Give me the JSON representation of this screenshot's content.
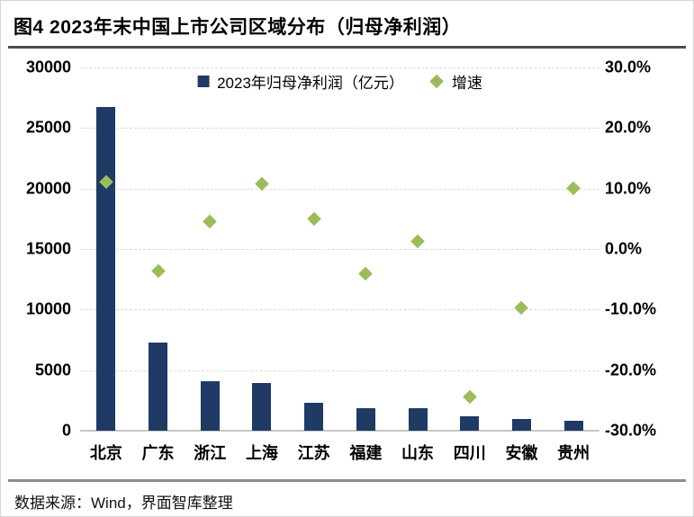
{
  "title": "图4 2023年末中国上市公司区域分布（归母净利润）",
  "legend": {
    "bar_label": "2023年归母净利润（亿元）",
    "diamond_label": "增速"
  },
  "footer": "数据来源：Wind，界面智库整理",
  "colors": {
    "bar": "#1f3a64",
    "diamond": "#9cbb59",
    "gridline": "#d9d9d9",
    "axis_line": "#c6c6c6",
    "title_rule": "#4d4d4d",
    "footer_rule": "#8c8c8c"
  },
  "chart_data": {
    "type": "bar",
    "title": "图4 2023年末中国上市公司区域分布（归母净利润）",
    "categories": [
      "北京",
      "广东",
      "浙江",
      "上海",
      "江苏",
      "福建",
      "山东",
      "四川",
      "安徽",
      "贵州"
    ],
    "series": [
      {
        "name": "2023年归母净利润（亿元）",
        "type": "bar",
        "axis": "left",
        "values": [
          26700,
          7280,
          4060,
          3940,
          2330,
          1890,
          1830,
          1210,
          950,
          800
        ]
      },
      {
        "name": "增速",
        "type": "scatter",
        "axis": "right",
        "values": [
          11.2,
          -3.6,
          4.6,
          10.8,
          5.0,
          -4.0,
          1.3,
          -24.3,
          -9.6,
          10.1
        ]
      }
    ],
    "left_axis": {
      "min": 0,
      "max": 30000,
      "tick_labels": [
        "0",
        "5000",
        "10000",
        "15000",
        "20000",
        "25000",
        "30000"
      ]
    },
    "right_axis": {
      "min": -30,
      "max": 30,
      "unit": "%",
      "tick_labels": [
        "-30.0%",
        "-20.0%",
        "-10.0%",
        "0.0%",
        "10.0%",
        "20.0%",
        "30.0%"
      ]
    },
    "grid": "horizontal-dashed",
    "legend_position": "top-center"
  }
}
